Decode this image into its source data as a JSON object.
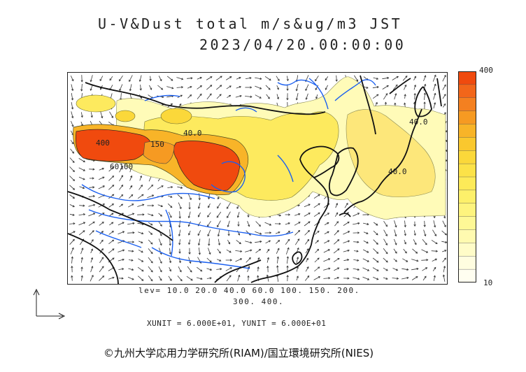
{
  "header": {
    "title": "U-V&Dust total m/s&ug/m3 JST",
    "datetime": "2023/04/20.00:00:00"
  },
  "map": {
    "region": "East Asia",
    "contour_labels": [
      "40.0",
      "40.0",
      "40.0",
      "150",
      "400",
      "60100"
    ],
    "colors": {
      "land_outline": "#111111",
      "rivers": "#1a5ff0",
      "wind_arrows": "#333333"
    }
  },
  "colorbar": {
    "max_label": "400",
    "min_label": "10",
    "colors": [
      "#f04a0e",
      "#f2661a",
      "#f48020",
      "#f69a22",
      "#f8b428",
      "#fac82e",
      "#fbd83a",
      "#fce248",
      "#fdea58",
      "#fdf06a",
      "#fef47e",
      "#fef896",
      "#fffab0",
      "#fffcc8",
      "#fffde0",
      "#fffef0"
    ]
  },
  "legend": {
    "lev_line1": "lev= 10.0 20.0 40.0 60.0 100. 150. 200.",
    "lev_line2": "300. 400.",
    "units": "XUNIT = 6.000E+01, YUNIT = 6.000E+01"
  },
  "credit": "©九州大学応用力学研究所(RIAM)/国立環境研究所(NIES)"
}
